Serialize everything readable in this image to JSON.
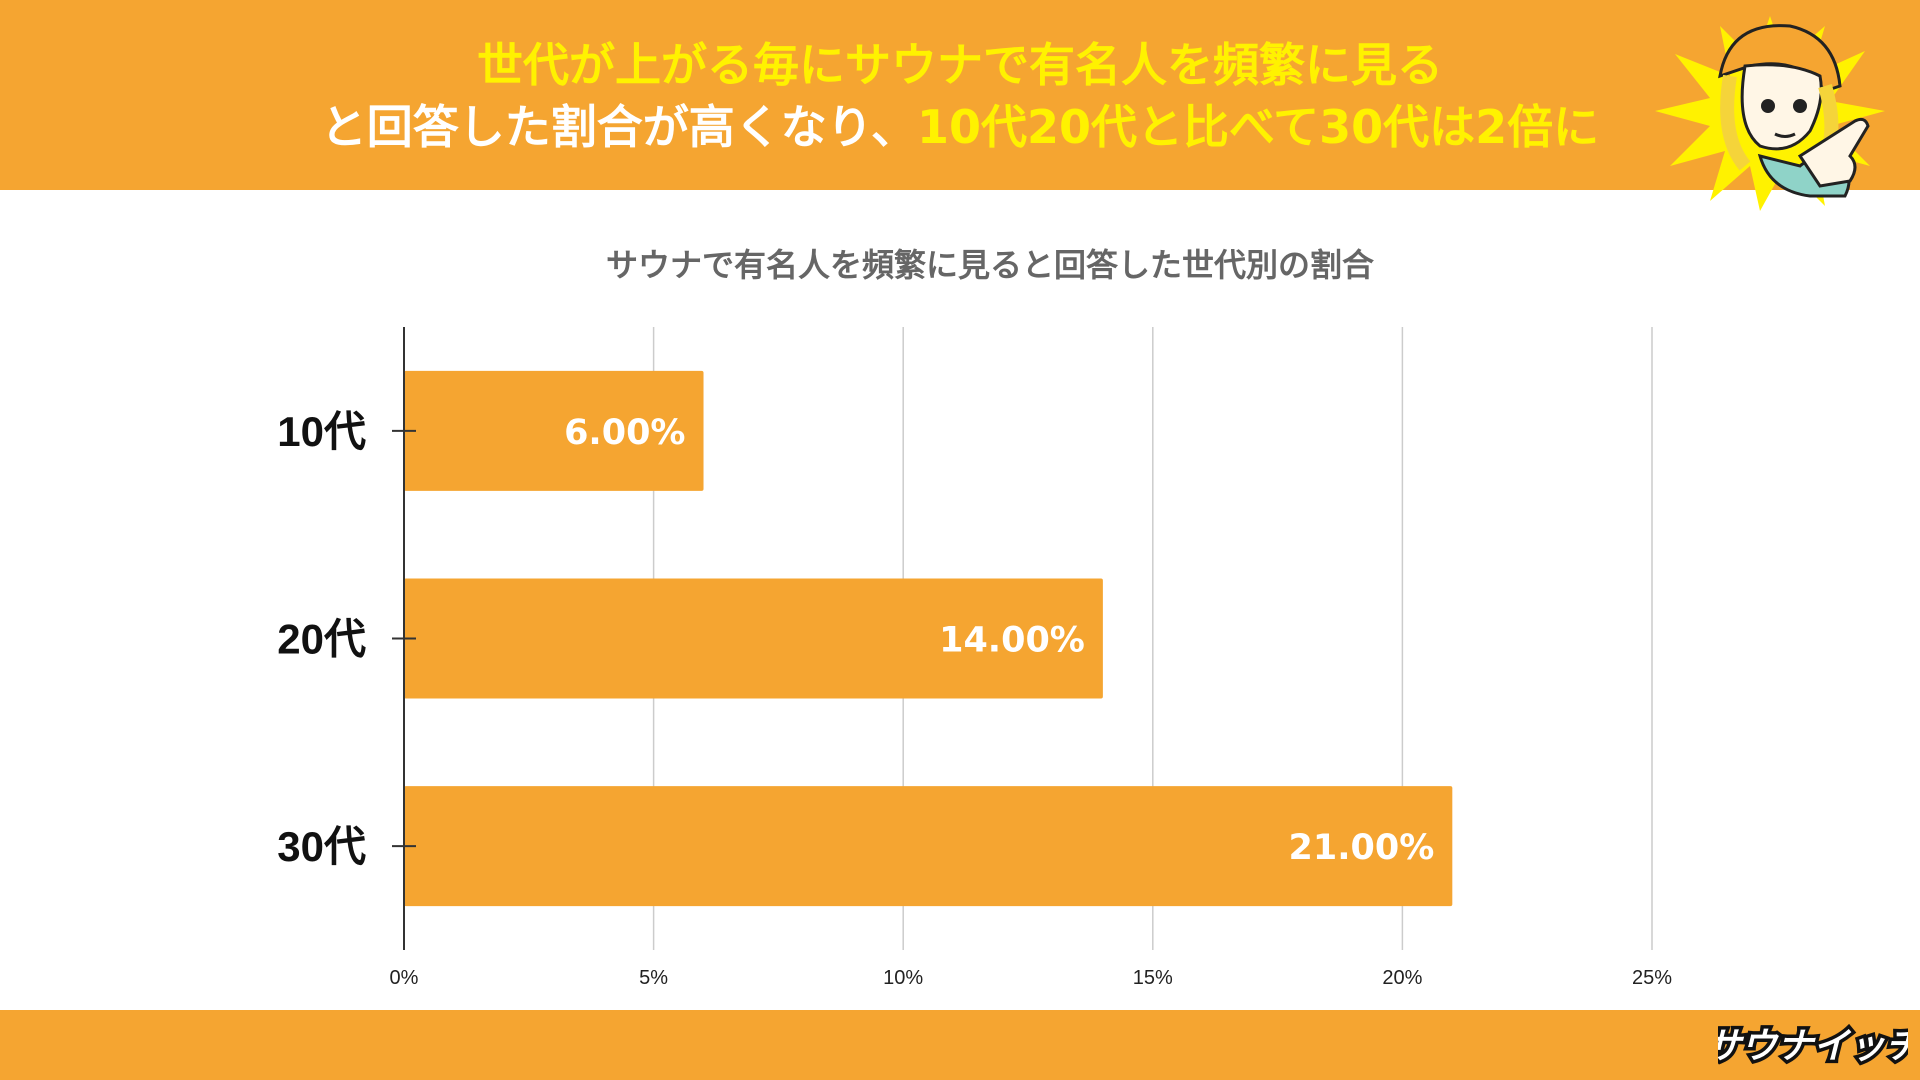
{
  "headline": {
    "line1": "世代が上がる毎にサウナで有名人を頻繁に見る",
    "line2_prefix": "と回答した割合が高くなり、",
    "line2_highlight": "10代20代と比べて30代は2倍に"
  },
  "colors": {
    "orange": "#f5a531",
    "headline_yellow": "#fff200",
    "bar": "#f5a531"
  },
  "chart_data": {
    "type": "bar",
    "orientation": "horizontal",
    "title": "サウナで有名人を頻繁に見ると回答した世代別の割合",
    "categories": [
      "10代",
      "20代",
      "30代"
    ],
    "values": [
      6.0,
      14.0,
      21.0
    ],
    "data_labels": [
      "6.00%",
      "14.00%",
      "21.00%"
    ],
    "xlim": [
      0,
      25
    ],
    "x_ticks": [
      0,
      5,
      10,
      15,
      20,
      25
    ],
    "x_tick_labels": [
      "0%",
      "5%",
      "10%",
      "15%",
      "20%",
      "25%"
    ],
    "xlabel": "",
    "ylabel": "",
    "grid": true
  },
  "brand": {
    "logo_text": "サウナイッチ",
    "mascot_icon": "mascot-pointing-icon"
  }
}
